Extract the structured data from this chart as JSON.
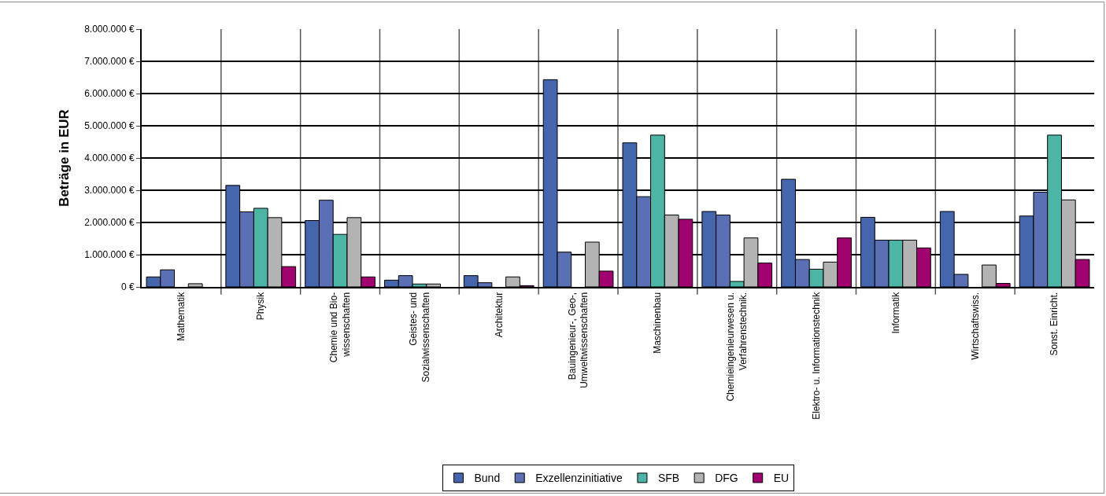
{
  "chart_data": {
    "type": "bar",
    "ylabel": "Beträge in EUR",
    "categories": [
      "Mathematik",
      "Physik",
      "Chemie und Bio-\nwissenschaften",
      "Geistes- und\nSozialwissenschaften",
      "Architektur",
      "Bauingenieur-, Geo-,\nUmweltwissenschaften",
      "Maschinenbau",
      "Chemieingenieurwesen u.\nVerfahrenstechnik.",
      "Elektro- u. Informationstechnik",
      "Informatik",
      "Wirtschaftswiss.",
      "Sonst. Einricht."
    ],
    "series": [
      {
        "name": "Bund",
        "color": "#4565ad",
        "values": [
          310000,
          3150000,
          2060000,
          210000,
          350000,
          6430000,
          4470000,
          2340000,
          3340000,
          2160000,
          2340000,
          2200000
        ]
      },
      {
        "name": "Exzellenzinitiative",
        "color": "#5a6fb4",
        "values": [
          530000,
          2330000,
          2690000,
          350000,
          130000,
          1080000,
          2800000,
          2230000,
          850000,
          1450000,
          390000,
          2940000
        ]
      },
      {
        "name": "SFB",
        "color": "#4cb5a5",
        "values": [
          null,
          2440000,
          1630000,
          90000,
          null,
          null,
          4710000,
          170000,
          550000,
          1450000,
          null,
          4710000
        ]
      },
      {
        "name": "DFG",
        "color": "#b3b3b3",
        "values": [
          100000,
          2150000,
          2150000,
          90000,
          310000,
          1390000,
          2230000,
          1520000,
          770000,
          1450000,
          680000,
          2700000
        ]
      },
      {
        "name": "EU",
        "color": "#a0036f",
        "values": [
          null,
          630000,
          310000,
          null,
          40000,
          490000,
          2100000,
          740000,
          1520000,
          1210000,
          110000,
          850000
        ]
      }
    ],
    "ylim": [
      0,
      8000000
    ],
    "yticks": [
      {
        "value": 0,
        "label": "0 €"
      },
      {
        "value": 1000000,
        "label": "1.000.000 €"
      },
      {
        "value": 2000000,
        "label": "2.000.000 €"
      },
      {
        "value": 3000000,
        "label": "3.000.000 €"
      },
      {
        "value": 4000000,
        "label": "4.000.000 €"
      },
      {
        "value": 5000000,
        "label": "5.000.000 €"
      },
      {
        "value": 6000000,
        "label": "6.000.000 €"
      },
      {
        "value": 7000000,
        "label": "7.000.000 €"
      },
      {
        "value": 8000000,
        "label": "8.000.000 €"
      }
    ],
    "grid": true,
    "legend": "bottom"
  }
}
